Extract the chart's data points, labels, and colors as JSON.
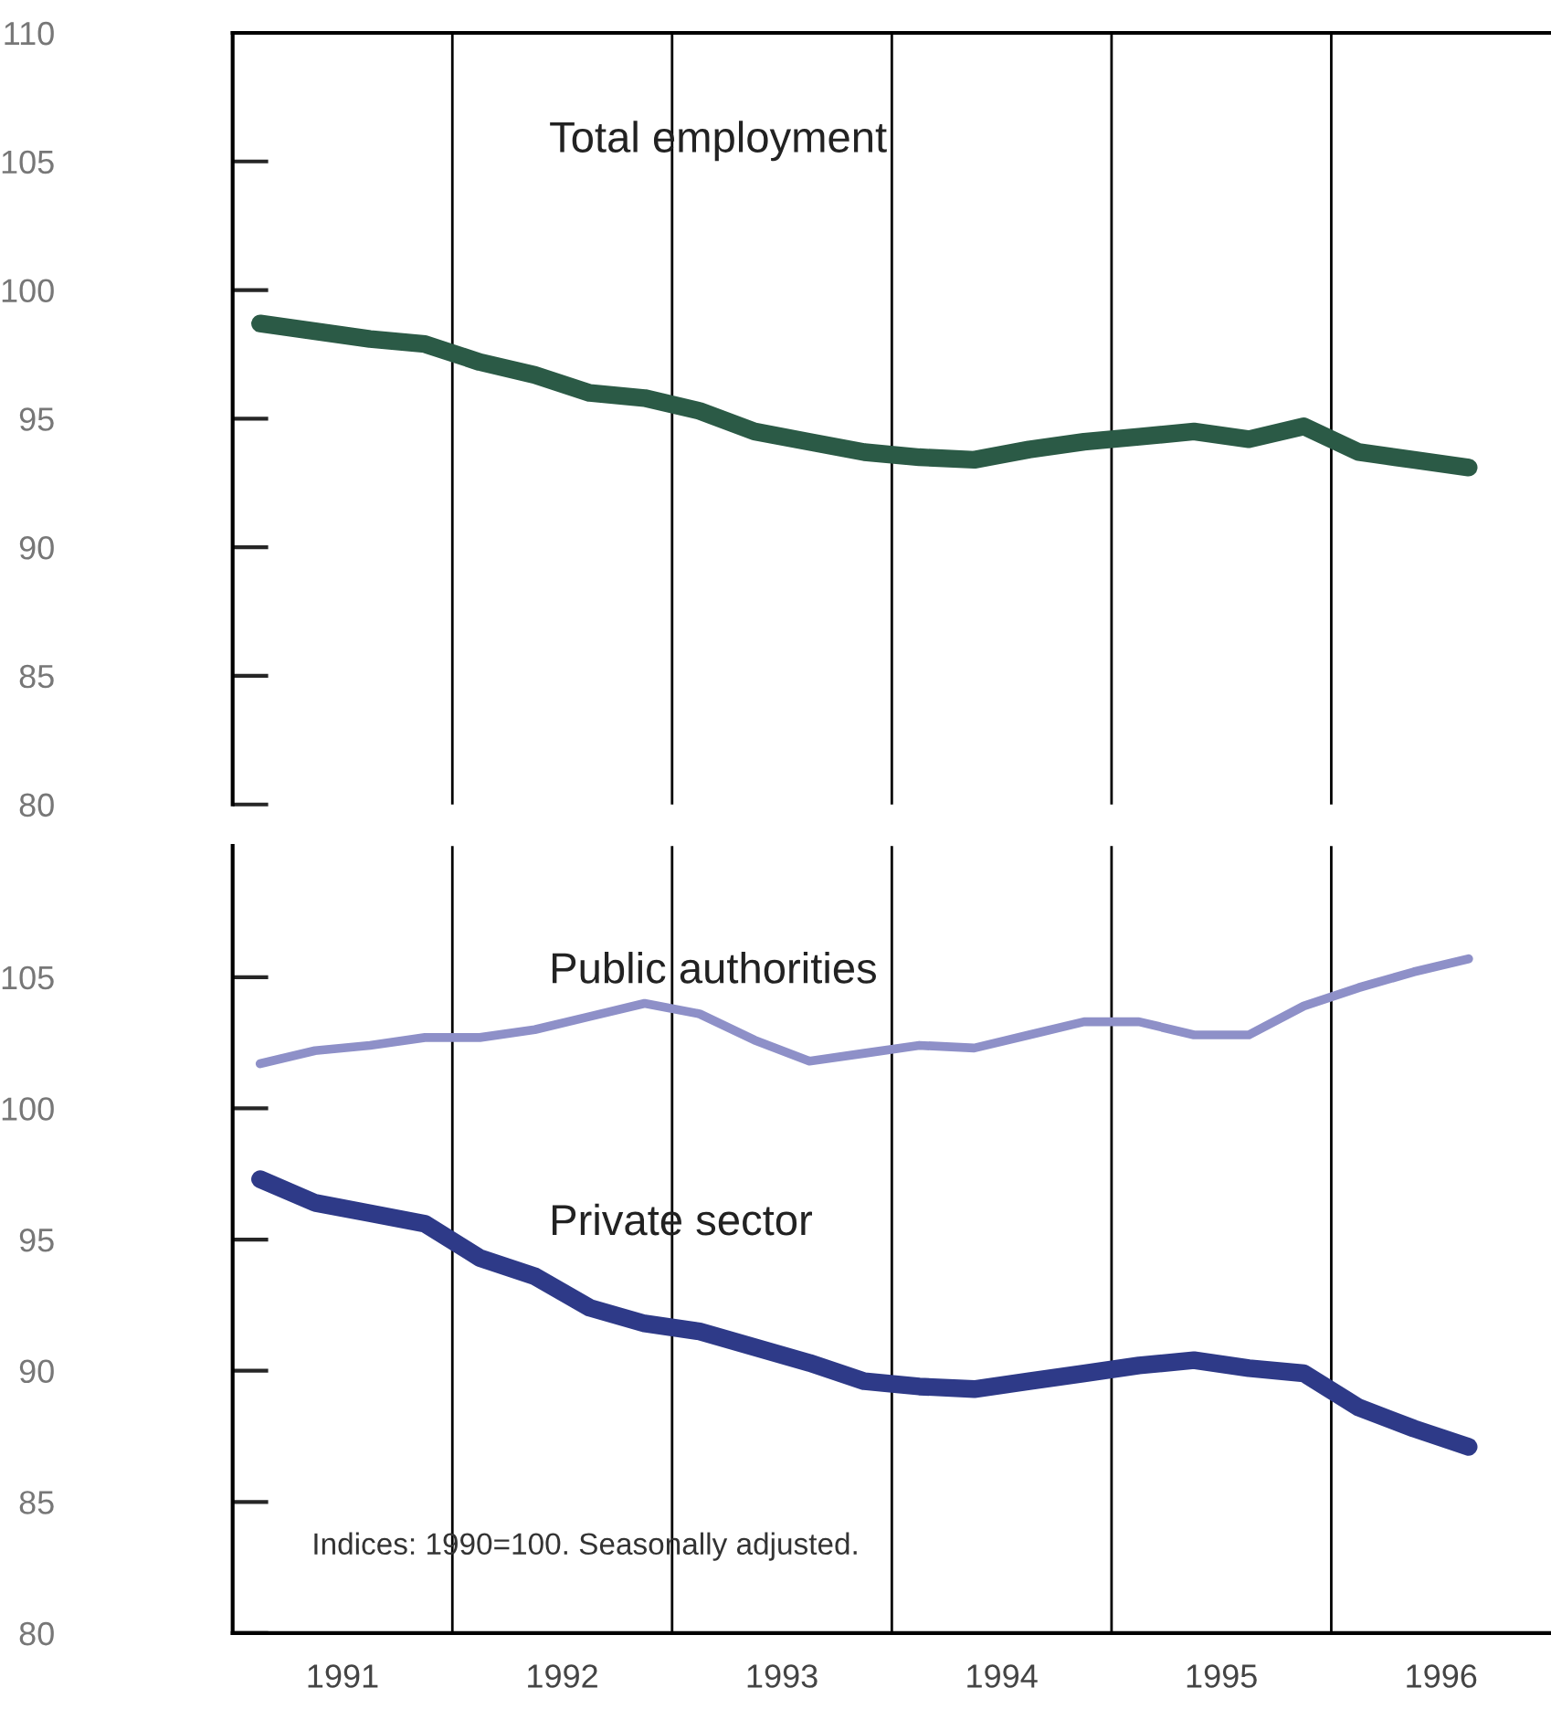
{
  "chart_data": [
    {
      "type": "line",
      "x": [
        1991.125,
        1991.375,
        1991.625,
        1991.875,
        1992.125,
        1992.375,
        1992.625,
        1992.875,
        1993.125,
        1993.375,
        1993.625,
        1993.875,
        1994.125,
        1994.375,
        1994.625,
        1994.875,
        1995.125,
        1995.375,
        1995.625,
        1995.875,
        1996.125,
        1996.375,
        1996.625
      ],
      "series": [
        {
          "name": "Total employment",
          "color": "#2b5a46",
          "values": [
            98.7,
            98.4,
            98.1,
            97.9,
            97.2,
            96.7,
            96.0,
            95.8,
            95.3,
            94.5,
            94.1,
            93.7,
            93.5,
            93.4,
            93.8,
            94.1,
            94.3,
            94.5,
            94.2,
            94.7,
            93.7,
            93.4,
            93.1
          ]
        }
      ],
      "xlim": [
        1991,
        1997
      ],
      "ylim": [
        80,
        110
      ],
      "yticks": [
        80,
        85,
        90,
        95,
        100,
        105,
        110
      ],
      "tick_labels": "y",
      "ref_lines": [
        {
          "axis": "x",
          "value": 1992
        },
        {
          "axis": "x",
          "value": 1993
        },
        {
          "axis": "x",
          "value": 1994
        },
        {
          "axis": "x",
          "value": 1995
        },
        {
          "axis": "x",
          "value": 1996
        }
      ]
    },
    {
      "type": "line",
      "x": [
        1991.125,
        1991.375,
        1991.625,
        1991.875,
        1992.125,
        1992.375,
        1992.625,
        1992.875,
        1993.125,
        1993.375,
        1993.625,
        1993.875,
        1994.125,
        1994.375,
        1994.625,
        1994.875,
        1995.125,
        1995.375,
        1995.625,
        1995.875,
        1996.125,
        1996.375,
        1996.625
      ],
      "series": [
        {
          "name": "Public authorities",
          "color": "#8e90c8",
          "values": [
            101.7,
            102.2,
            102.4,
            102.7,
            102.7,
            103.0,
            103.5,
            104.0,
            103.6,
            102.6,
            101.8,
            102.1,
            102.4,
            102.3,
            102.8,
            103.3,
            103.3,
            102.8,
            102.8,
            103.9,
            104.6,
            105.2,
            105.7
          ]
        },
        {
          "name": "Private sector",
          "color": "#2e3a88",
          "values": [
            97.3,
            96.4,
            96.0,
            95.6,
            94.3,
            93.6,
            92.4,
            91.8,
            91.5,
            90.9,
            90.3,
            89.6,
            89.4,
            89.3,
            89.6,
            89.9,
            90.2,
            90.4,
            90.1,
            89.9,
            88.6,
            87.8,
            87.1
          ]
        }
      ],
      "xlim": [
        1991,
        1997
      ],
      "xticks": [
        {
          "value": 1991.5,
          "label": "1991"
        },
        {
          "value": 1992.5,
          "label": "1992"
        },
        {
          "value": 1993.5,
          "label": "1993"
        },
        {
          "value": 1994.5,
          "label": "1994"
        },
        {
          "value": 1995.5,
          "label": "1995"
        },
        {
          "value": 1996.5,
          "label": "1996"
        }
      ],
      "ylim": [
        80,
        110
      ],
      "yticks": [
        80,
        85,
        90,
        95,
        100,
        105
      ],
      "ref_lines": [
        {
          "axis": "x",
          "value": 1992
        },
        {
          "axis": "x",
          "value": 1993
        },
        {
          "axis": "x",
          "value": 1994
        },
        {
          "axis": "x",
          "value": 1995
        },
        {
          "axis": "x",
          "value": 1996
        }
      ],
      "annotations": [
        "Indices: 1990=100. Seasonally adjusted."
      ]
    }
  ]
}
